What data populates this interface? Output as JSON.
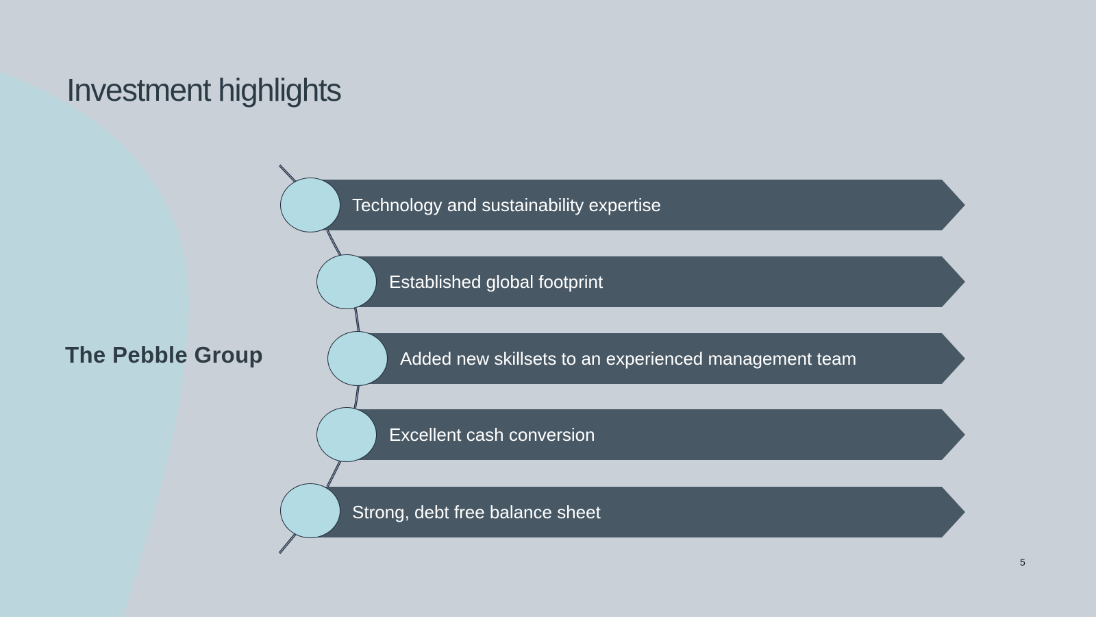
{
  "slide": {
    "title": "Investment highlights",
    "brand": "The Pebble Group",
    "page_number": "5"
  },
  "highlights": [
    {
      "label": "Technology and sustainability expertise"
    },
    {
      "label": "Established global footprint"
    },
    {
      "label": "Added new skillsets to an experienced management team"
    },
    {
      "label": "Excellent cash conversion"
    },
    {
      "label": "Strong, debt free balance sheet"
    }
  ],
  "colors": {
    "background": "#c9d0d7",
    "blob": "#bcd6dd",
    "banner": "#485864",
    "node_fill": "#b2dbe3",
    "title_text": "#2b3a45"
  }
}
